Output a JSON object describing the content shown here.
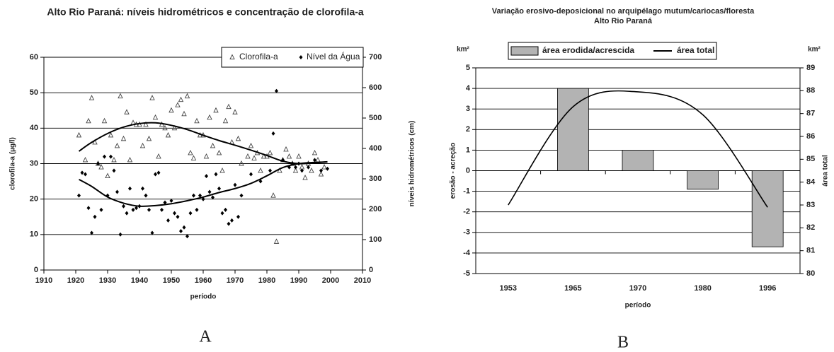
{
  "chart_data": [
    {
      "type": "scatter",
      "title": "Alto Rio Paraná: níveis hidrométricos e concentração de clorofila-a",
      "xlabel": "período",
      "ylabel": "clorofila-a  (µg/l)",
      "y2label": "níveis hidrométricos (cm)",
      "caption": "A",
      "xlim": [
        1910,
        2010
      ],
      "xticks": [
        1910,
        1920,
        1930,
        1940,
        1950,
        1960,
        1970,
        1980,
        1990,
        2000,
        2010
      ],
      "ylim": [
        0,
        60
      ],
      "yticks": [
        0,
        10,
        20,
        30,
        40,
        50,
        60
      ],
      "y2lim": [
        0,
        700
      ],
      "y2ticks": [
        0,
        100,
        200,
        300,
        400,
        500,
        600,
        700
      ],
      "grid": true,
      "series": [
        {
          "name": "Clorofila-a",
          "color": "#444444",
          "marker": "triangle",
          "x": [
            1921,
            1923,
            1924,
            1925,
            1926,
            1927,
            1928,
            1929,
            1930,
            1931,
            1932,
            1933,
            1934,
            1935,
            1936,
            1937,
            1938,
            1939,
            1940,
            1941,
            1942,
            1943,
            1944,
            1945,
            1946,
            1947,
            1948,
            1949,
            1950,
            1951,
            1952,
            1953,
            1954,
            1955,
            1956,
            1957,
            1958,
            1959,
            1960,
            1961,
            1962,
            1963,
            1964,
            1965,
            1966,
            1967,
            1968,
            1969,
            1970,
            1971,
            1972,
            1974,
            1975,
            1976,
            1977,
            1978,
            1979,
            1980,
            1981,
            1982,
            1983,
            1984,
            1985,
            1986,
            1987,
            1988,
            1989,
            1990,
            1991,
            1992,
            1993,
            1994,
            1995,
            1996,
            1997,
            1998
          ],
          "values": [
            38,
            31,
            42,
            48.5,
            36,
            30,
            29,
            42,
            26.5,
            38,
            31,
            35,
            49,
            37,
            44.5,
            31,
            41.5,
            41,
            41,
            35,
            41,
            37,
            48.5,
            43,
            32,
            41,
            40,
            38,
            45,
            40,
            46.5,
            48,
            44,
            49,
            33,
            31.5,
            42,
            38,
            38,
            32,
            43,
            35,
            45,
            33,
            28,
            42,
            46,
            36,
            44.5,
            37,
            30,
            32,
            35,
            31.5,
            33,
            28,
            32,
            32,
            33,
            21,
            8,
            28,
            31,
            34,
            32,
            30,
            28,
            32,
            29,
            26,
            30,
            28,
            33,
            31,
            27,
            29
          ]
        },
        {
          "name": "Nível da Água",
          "color": "#000000",
          "marker": "diamond",
          "axis": "y2",
          "x": [
            1921,
            1922,
            1923,
            1924,
            1925,
            1926,
            1927,
            1928,
            1929,
            1930,
            1931,
            1932,
            1933,
            1934,
            1935,
            1936,
            1937,
            1938,
            1939,
            1940,
            1941,
            1942,
            1943,
            1944,
            1945,
            1946,
            1947,
            1948,
            1949,
            1950,
            1951,
            1952,
            1953,
            1954,
            1955,
            1956,
            1957,
            1958,
            1959,
            1960,
            1961,
            1962,
            1963,
            1964,
            1965,
            1966,
            1967,
            1968,
            1969,
            1970,
            1971,
            1972,
            1975,
            1978,
            1981,
            1982,
            1983,
            1985,
            1987,
            1988,
            1989,
            1990,
            1991,
            1993,
            1995,
            1997,
            1999
          ],
          "values": [
            245,
            320,
            315,
            204,
            122,
            175,
            350,
            198,
            373,
            245,
            373,
            327,
            257,
            117,
            210,
            187,
            268,
            198,
            204,
            210,
            268,
            245,
            198,
            122,
            315,
            320,
            198,
            222,
            163,
            228,
            187,
            175,
            128,
            140,
            111,
            187,
            245,
            198,
            245,
            233,
            309,
            257,
            239,
            315,
            268,
            187,
            198,
            152,
            163,
            280,
            175,
            245,
            315,
            292,
            327,
            449,
            589,
            362,
            338,
            350,
            338,
            350,
            327,
            338,
            362,
            327,
            333
          ]
        }
      ],
      "trendlines": [
        {
          "x": [
            1921,
            1925,
            1930,
            1935,
            1940,
            1945,
            1950,
            1955,
            1960,
            1965,
            1970,
            1975,
            1980,
            1985,
            1990,
            1995,
            1999
          ],
          "values": [
            33.5,
            36,
            38.5,
            40.3,
            41.3,
            41.5,
            40.8,
            39.6,
            38,
            36.5,
            35.2,
            33.8,
            32.3,
            30.7,
            30,
            30.2,
            30.5
          ]
        },
        {
          "x": [
            1921,
            1925,
            1930,
            1935,
            1940,
            1945,
            1950,
            1955,
            1960,
            1965,
            1970,
            1975,
            1980,
            1985,
            1990,
            1995,
            1999
          ],
          "values": [
            298,
            275,
            240,
            220,
            210,
            212,
            218,
            228,
            240,
            255,
            268,
            285,
            310,
            337,
            350,
            354,
            356
          ],
          "axis": "y2"
        }
      ]
    },
    {
      "type": "bar",
      "title": "Variação erosivo-deposicional no arquipélago mutum/cariocas/floresta",
      "subtitle": "Alto Rio Paraná",
      "xlabel": "período",
      "ylabel": "erosão  -  acreção",
      "y2label": "área total",
      "yunit": "km²",
      "y2unit": "km²",
      "caption": "B",
      "categories": [
        "1953",
        "1965",
        "1970",
        "1980",
        "1996"
      ],
      "ylim": [
        -5,
        5
      ],
      "yticks": [
        -5,
        -4,
        -3,
        -2,
        -1,
        0,
        1,
        2,
        3,
        4,
        5
      ],
      "y2lim": [
        80,
        89
      ],
      "y2ticks": [
        80,
        81,
        82,
        83,
        84,
        85,
        86,
        87,
        88,
        89
      ],
      "grid": true,
      "series": [
        {
          "name": "área erodida/acrescida",
          "type": "bar",
          "color": "#b3b3b3",
          "values": [
            null,
            4,
            1,
            -0.9,
            -3.7
          ]
        },
        {
          "name": "área total",
          "type": "line",
          "color": "#000000",
          "axis": "y2",
          "values": [
            83,
            87.3,
            87.95,
            86.95,
            82.9
          ]
        }
      ]
    }
  ]
}
